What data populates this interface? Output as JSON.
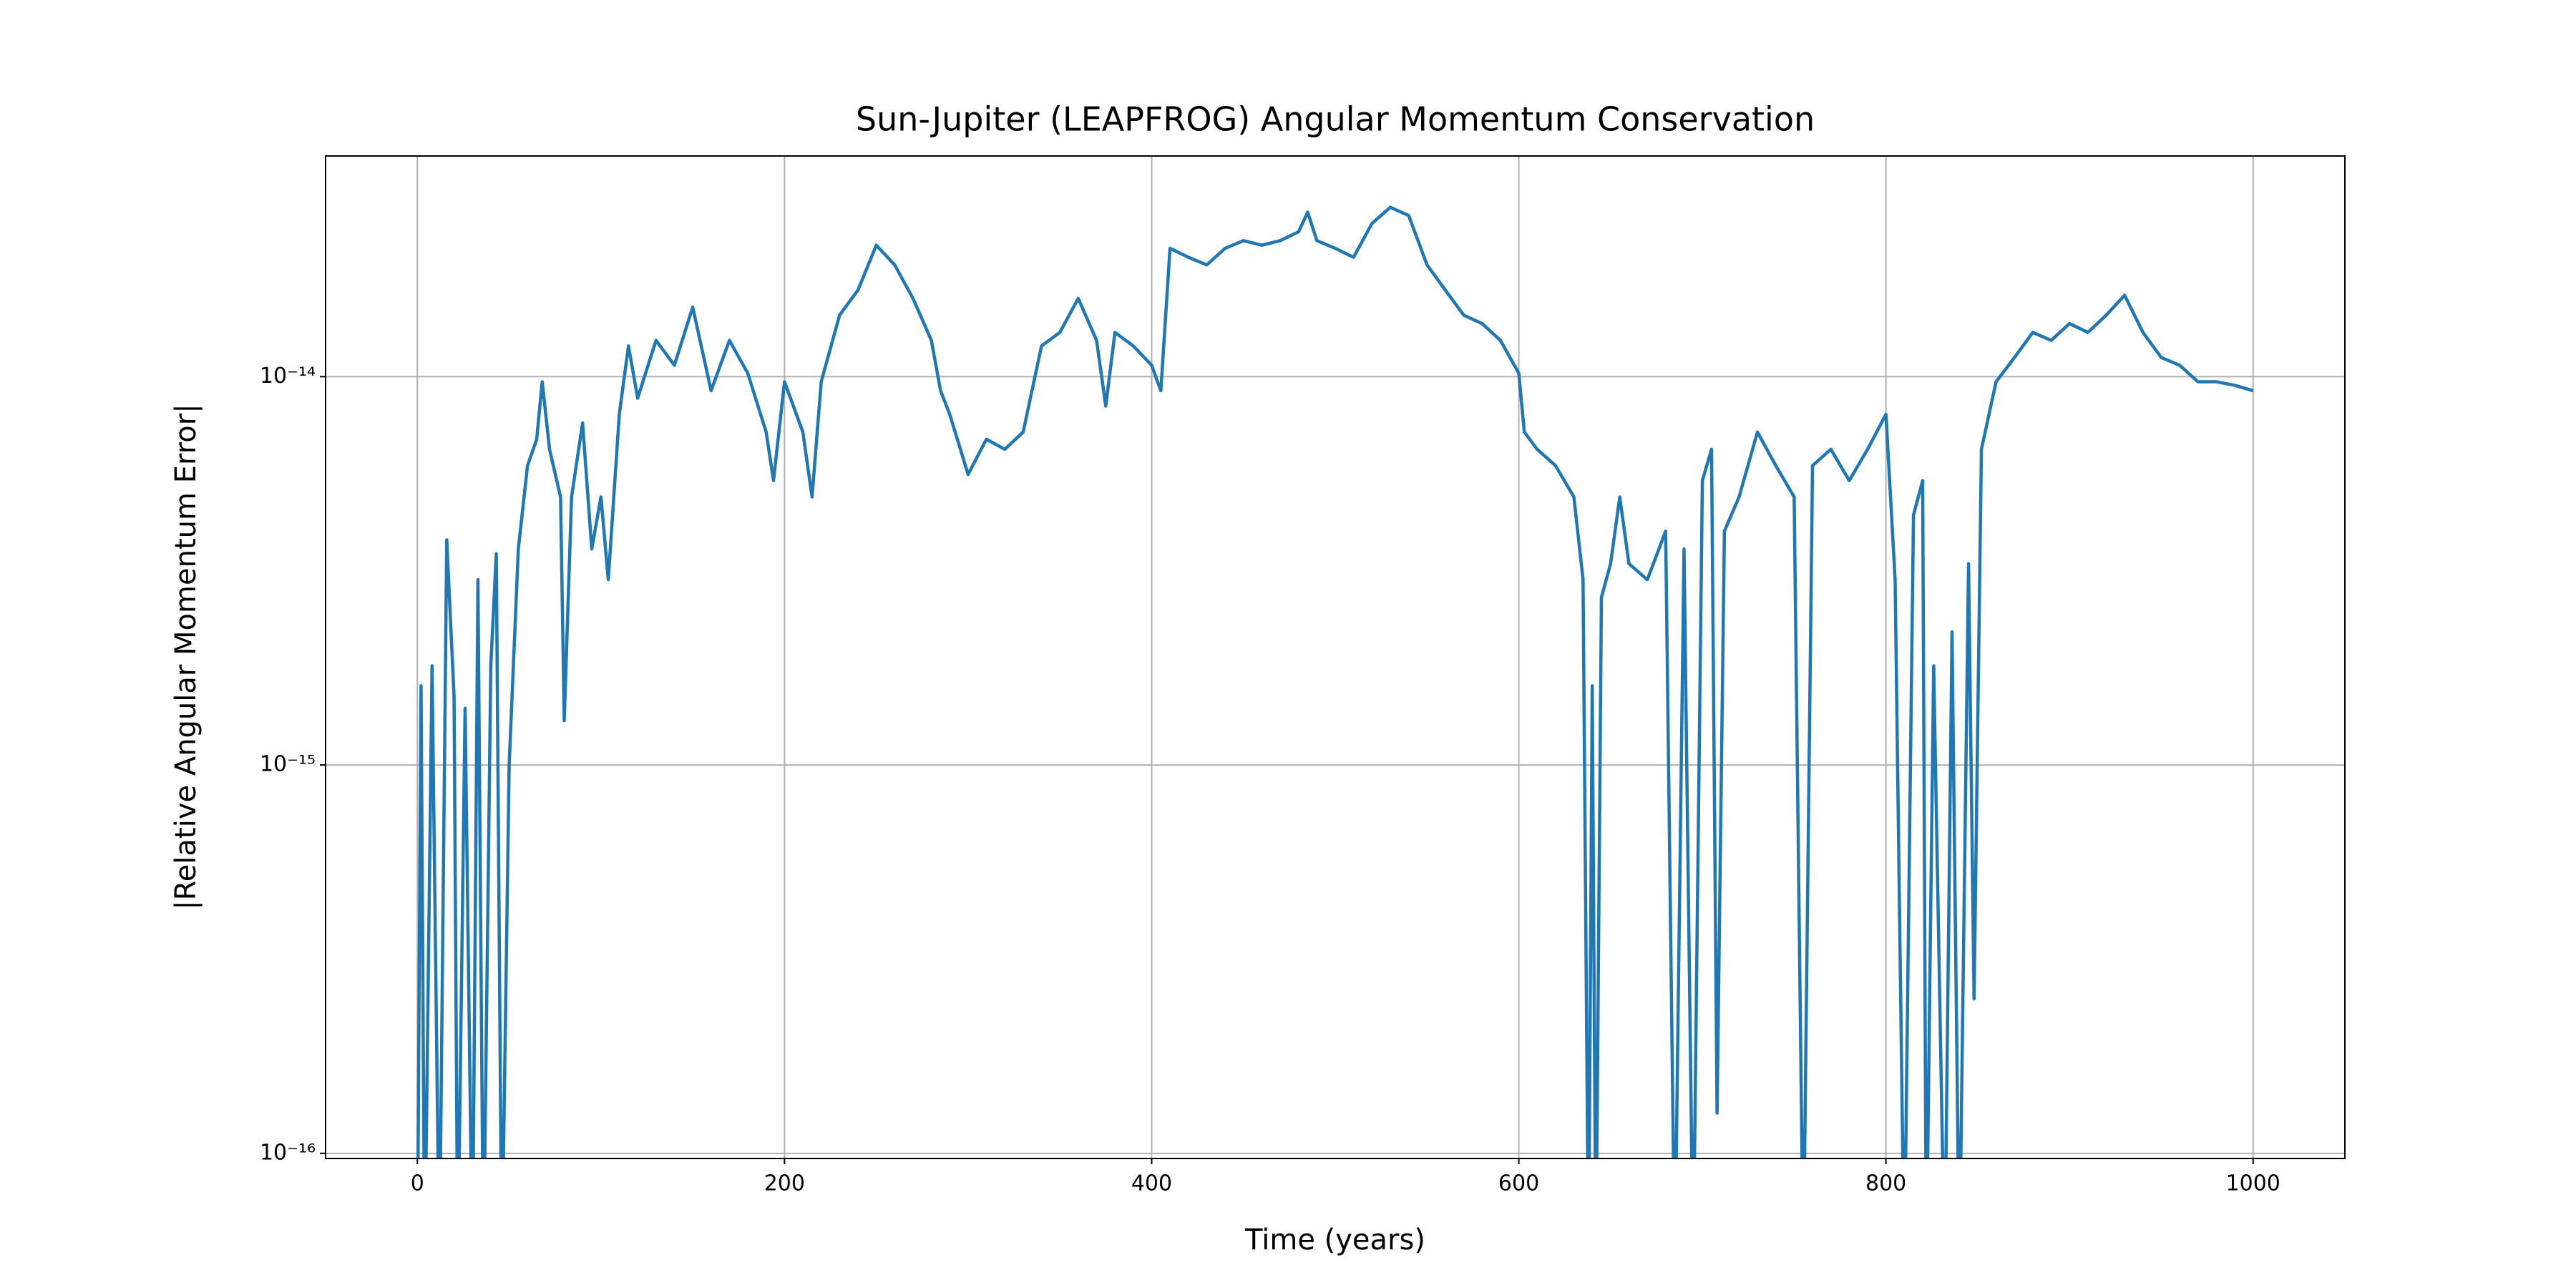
{
  "chart_data": {
    "type": "line",
    "title": "Sun-Jupiter (LEAPFROG) Angular Momentum Conservation",
    "x_label": "Time (years)",
    "y_label": "|Relative Angular Momentum Error|",
    "y_scale": "log",
    "grid": true,
    "color": "#1f77b4",
    "xlim": [
      -50,
      1050
    ],
    "xticks": [
      0,
      200,
      400,
      600,
      800,
      1000
    ],
    "ylim": [
      9.7e-17,
      3.7e-14
    ],
    "yticks": [
      {
        "value": 1e-16,
        "label": "10⁻¹⁶"
      },
      {
        "value": 1e-15,
        "label": "10⁻¹⁵"
      },
      {
        "value": 1e-14,
        "label": "10⁻¹⁴"
      }
    ],
    "x": [
      0,
      2,
      4,
      8,
      12,
      16,
      20,
      22,
      26,
      30,
      33,
      36,
      40,
      43,
      46,
      50,
      55,
      60,
      65,
      68,
      72,
      78,
      80,
      84,
      90,
      95,
      100,
      104,
      110,
      115,
      120,
      130,
      140,
      150,
      160,
      170,
      180,
      190,
      194,
      200,
      210,
      215,
      220,
      230,
      240,
      250,
      260,
      270,
      280,
      285,
      290,
      300,
      310,
      320,
      330,
      340,
      350,
      360,
      370,
      375,
      380,
      390,
      400,
      405,
      410,
      420,
      430,
      440,
      450,
      460,
      470,
      480,
      485,
      490,
      500,
      510,
      520,
      530,
      540,
      550,
      560,
      570,
      580,
      590,
      600,
      603,
      610,
      620,
      630,
      635,
      638,
      640,
      642,
      645,
      650,
      655,
      660,
      670,
      680,
      685,
      690,
      695,
      700,
      705,
      708,
      712,
      720,
      730,
      740,
      750,
      755,
      760,
      770,
      780,
      790,
      800,
      805,
      810,
      815,
      820,
      822,
      826,
      832,
      836,
      840,
      845,
      848,
      852,
      860,
      870,
      880,
      890,
      900,
      910,
      920,
      930,
      940,
      950,
      960,
      970,
      980,
      990,
      1000
    ],
    "values": [
      5e-17,
      1.6e-15,
      5e-17,
      1.8e-15,
      5e-17,
      3.8e-15,
      1.5e-15,
      5e-17,
      1.4e-15,
      5e-17,
      3e-15,
      5e-17,
      1.8e-15,
      3.5e-15,
      5e-17,
      1e-15,
      3.6e-15,
      5.9e-15,
      6.9e-15,
      9.7e-15,
      6.5e-15,
      4.9e-15,
      1.3e-15,
      4.9e-15,
      7.6e-15,
      3.6e-15,
      4.9e-15,
      3e-15,
      8e-15,
      1.2e-14,
      8.8e-15,
      1.24e-14,
      1.07e-14,
      1.51e-14,
      9.2e-15,
      1.24e-14,
      1.02e-14,
      7.2e-15,
      5.4e-15,
      9.7e-15,
      7.2e-15,
      4.9e-15,
      9.7e-15,
      1.44e-14,
      1.67e-14,
      2.18e-14,
      1.94e-14,
      1.59e-14,
      1.24e-14,
      9.2e-15,
      8e-15,
      5.6e-15,
      6.9e-15,
      6.5e-15,
      7.2e-15,
      1.2e-14,
      1.3e-14,
      1.59e-14,
      1.24e-14,
      8.4e-15,
      1.3e-14,
      1.2e-14,
      1.07e-14,
      9.2e-15,
      2.14e-14,
      2.03e-14,
      1.94e-14,
      2.14e-14,
      2.24e-14,
      2.18e-14,
      2.24e-14,
      2.36e-14,
      2.65e-14,
      2.24e-14,
      2.14e-14,
      2.03e-14,
      2.48e-14,
      2.73e-14,
      2.6e-14,
      1.94e-14,
      1.67e-14,
      1.44e-14,
      1.37e-14,
      1.24e-14,
      1.02e-14,
      7.2e-15,
      6.5e-15,
      5.9e-15,
      4.9e-15,
      3e-15,
      5e-17,
      1.6e-15,
      5e-17,
      2.7e-15,
      3.3e-15,
      4.9e-15,
      3.3e-15,
      3e-15,
      4e-15,
      5e-17,
      3.6e-15,
      5e-17,
      5.4e-15,
      6.5e-15,
      1.27e-16,
      4e-15,
      4.9e-15,
      7.2e-15,
      5.9e-15,
      4.9e-15,
      5e-17,
      5.9e-15,
      6.5e-15,
      5.4e-15,
      6.5e-15,
      8e-15,
      3e-15,
      5e-17,
      4.4e-15,
      5.4e-15,
      5e-17,
      1.8e-15,
      5e-17,
      2.2e-15,
      5e-17,
      3.3e-15,
      2.5e-16,
      6.5e-15,
      9.7e-15,
      1.12e-14,
      1.3e-14,
      1.24e-14,
      1.37e-14,
      1.3e-14,
      1.44e-14,
      1.62e-14,
      1.3e-14,
      1.12e-14,
      1.07e-14,
      9.7e-15,
      9.7e-15,
      9.5e-15,
      9.2e-15
    ]
  }
}
